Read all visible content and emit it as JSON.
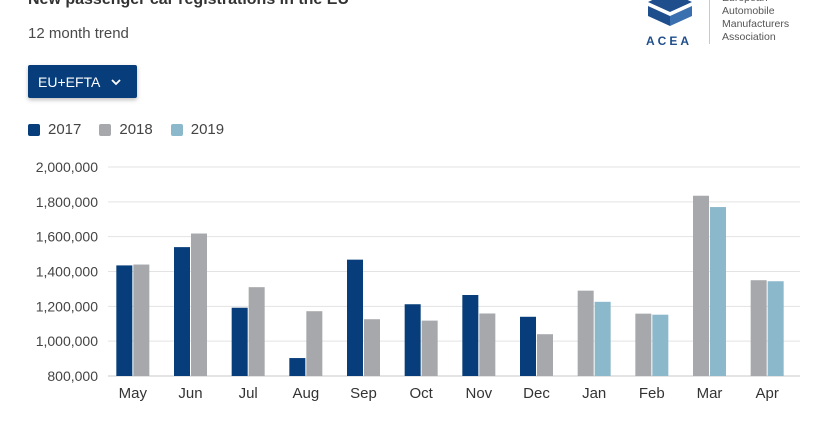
{
  "header": {
    "title": "New passenger car registrations in the EU",
    "subtitle": "12 month trend"
  },
  "logo": {
    "acronym": "ACEA",
    "full_name": "European\nAutomobile\nManufacturers\nAssociation",
    "color": "#1f4e8c"
  },
  "filter": {
    "selected": "EU+EFTA",
    "icon": "chevron-down-icon"
  },
  "colors": {
    "2017": "#063d7a",
    "2018": "#a6a8ab",
    "2019": "#8bb8cb",
    "grid": "#e3e3e3"
  },
  "chart_data": {
    "type": "bar",
    "title": "New passenger car registrations in the EU",
    "subtitle": "12 month trend",
    "categories": [
      "May",
      "Jun",
      "Jul",
      "Aug",
      "Sep",
      "Oct",
      "Nov",
      "Dec",
      "Jan",
      "Feb",
      "Mar",
      "Apr"
    ],
    "series": [
      {
        "name": "2017",
        "values": [
          1435000,
          1540000,
          1192000,
          903000,
          1468000,
          1212000,
          1265000,
          1140000,
          null,
          null,
          null,
          null
        ]
      },
      {
        "name": "2018",
        "values": [
          1440000,
          1618000,
          1310000,
          1172000,
          1126000,
          1118000,
          1159000,
          1040000,
          1290000,
          1158000,
          1835000,
          1350000
        ]
      },
      {
        "name": "2019",
        "values": [
          null,
          null,
          null,
          null,
          null,
          null,
          null,
          null,
          1226000,
          1152000,
          1770000,
          1344000
        ]
      }
    ],
    "ylim": [
      800000,
      2000000
    ],
    "yticks": [
      "800,000",
      "1,000,000",
      "1,200,000",
      "1,400,000",
      "1,600,000",
      "1,800,000",
      "2,000,000"
    ],
    "ytick_values": [
      800000,
      1000000,
      1200000,
      1400000,
      1600000,
      1800000,
      2000000
    ],
    "grid": true,
    "legend": "top-left"
  }
}
